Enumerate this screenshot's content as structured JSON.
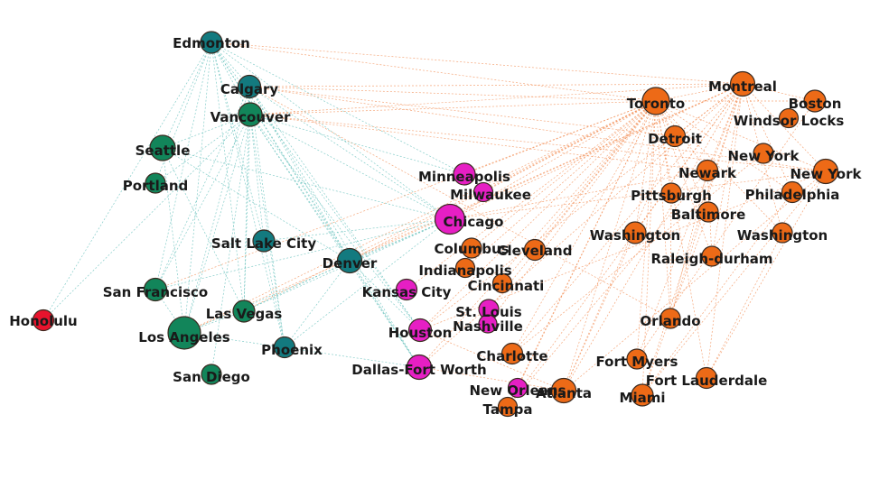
{
  "colors": {
    "canada_west": "#137a7f",
    "west_us": "#12855a",
    "central": "#e61fc4",
    "east": "#ed6a17",
    "hawaii": "#e8132d",
    "edge_teal": "#5dbdb8",
    "edge_orange": "#f28a4f"
  },
  "nodes": [
    {
      "id": "edmonton",
      "label": "Edmonton",
      "group": "canada_west",
      "weight": 1
    },
    {
      "id": "calgary",
      "label": "Calgary",
      "group": "canada_west",
      "weight": 1.1
    },
    {
      "id": "vancouver",
      "label": "Vancouver",
      "group": "west_us",
      "weight": 1.2
    },
    {
      "id": "seattle",
      "label": "Seattle",
      "group": "west_us",
      "weight": 1.4
    },
    {
      "id": "portland",
      "label": "Portland",
      "group": "west_us",
      "weight": 0.8
    },
    {
      "id": "saltlake",
      "label": "Salt Lake City",
      "group": "canada_west",
      "weight": 1
    },
    {
      "id": "denver",
      "label": "Denver",
      "group": "canada_west",
      "weight": 1.3
    },
    {
      "id": "sanfrancisco",
      "label": "San Francisco",
      "group": "west_us",
      "weight": 1.1
    },
    {
      "id": "lasvegas",
      "label": "Las Vegas",
      "group": "west_us",
      "weight": 1
    },
    {
      "id": "losangeles",
      "label": "Los Angeles",
      "group": "west_us",
      "weight": 2.2
    },
    {
      "id": "phoenix",
      "label": "Phoenix",
      "group": "canada_west",
      "weight": 0.9
    },
    {
      "id": "sandiego",
      "label": "San Diego",
      "group": "west_us",
      "weight": 0.8
    },
    {
      "id": "honolulu",
      "label": "Honolulu",
      "group": "hawaii",
      "weight": 0.9
    },
    {
      "id": "minneapolis",
      "label": "Minneapolis",
      "group": "central",
      "weight": 1
    },
    {
      "id": "milwaukee",
      "label": "Milwaukee",
      "group": "central",
      "weight": 0.7
    },
    {
      "id": "chicago",
      "label": "Chicago",
      "group": "central",
      "weight": 1.9
    },
    {
      "id": "kansascity",
      "label": "Kansas City",
      "group": "central",
      "weight": 0.9
    },
    {
      "id": "houston",
      "label": "Houston",
      "group": "central",
      "weight": 1.1
    },
    {
      "id": "dallas",
      "label": "Dallas-Fort Worth",
      "group": "central",
      "weight": 1.3
    },
    {
      "id": "stlouis",
      "label": "St. Louis",
      "group": "central",
      "weight": 0.8
    },
    {
      "id": "nashville",
      "label": "Nashville",
      "group": "central",
      "weight": 0.6
    },
    {
      "id": "neworleans",
      "label": "New Orleans",
      "group": "central",
      "weight": 0.7
    },
    {
      "id": "columbus",
      "label": "Columbus",
      "group": "east",
      "weight": 0.8
    },
    {
      "id": "cleveland",
      "label": "Cleveland",
      "group": "east",
      "weight": 0.9
    },
    {
      "id": "indianapolis",
      "label": "Indianapolis",
      "group": "east",
      "weight": 0.7
    },
    {
      "id": "cincinnati",
      "label": "Cincinnati",
      "group": "east",
      "weight": 0.7
    },
    {
      "id": "charlotte",
      "label": "Charlotte",
      "group": "east",
      "weight": 0.9
    },
    {
      "id": "atlanta",
      "label": "Atlanta",
      "group": "east",
      "weight": 1.3
    },
    {
      "id": "tampa",
      "label": "Tampa",
      "group": "east",
      "weight": 0.7
    },
    {
      "id": "toronto",
      "label": "Toronto",
      "group": "east",
      "weight": 1.6
    },
    {
      "id": "montreal",
      "label": "Montreal",
      "group": "east",
      "weight": 1.3
    },
    {
      "id": "boston",
      "label": "Boston",
      "group": "east",
      "weight": 1
    },
    {
      "id": "windsorlocks",
      "label": "Windsor Locks",
      "group": "east",
      "weight": 0.7
    },
    {
      "id": "detroit",
      "label": "Detroit",
      "group": "east",
      "weight": 0.9
    },
    {
      "id": "newyork1",
      "label": "New York",
      "group": "east",
      "weight": 0.8
    },
    {
      "id": "newark",
      "label": "Newark",
      "group": "east",
      "weight": 0.9
    },
    {
      "id": "newyork2",
      "label": "New York",
      "group": "east",
      "weight": 1.3
    },
    {
      "id": "pittsburgh",
      "label": "Pittsburgh",
      "group": "east",
      "weight": 0.8
    },
    {
      "id": "philadelphia",
      "label": "Philadelphia",
      "group": "east",
      "weight": 0.9
    },
    {
      "id": "baltimore",
      "label": "Baltimore",
      "group": "east",
      "weight": 0.8
    },
    {
      "id": "washington1",
      "label": "Washington",
      "group": "east",
      "weight": 1
    },
    {
      "id": "washington2",
      "label": "Washington",
      "group": "east",
      "weight": 0.8
    },
    {
      "id": "raleigh",
      "label": "Raleigh-durham",
      "group": "east",
      "weight": 0.8
    },
    {
      "id": "orlando",
      "label": "Orlando",
      "group": "east",
      "weight": 0.8
    },
    {
      "id": "fortmyers",
      "label": "Fort Myers",
      "group": "east",
      "weight": 0.8
    },
    {
      "id": "fortlauderdale",
      "label": "Fort Lauderdale",
      "group": "east",
      "weight": 0.9
    },
    {
      "id": "miami",
      "label": "Miami",
      "group": "east",
      "weight": 1
    }
  ],
  "edges": [
    [
      "edmonton",
      "calgary"
    ],
    [
      "edmonton",
      "vancouver"
    ],
    [
      "edmonton",
      "seattle"
    ],
    [
      "edmonton",
      "portland"
    ],
    [
      "edmonton",
      "saltlake"
    ],
    [
      "edmonton",
      "denver"
    ],
    [
      "edmonton",
      "lasvegas"
    ],
    [
      "edmonton",
      "losangeles"
    ],
    [
      "edmonton",
      "phoenix"
    ],
    [
      "edmonton",
      "honolulu"
    ],
    [
      "edmonton",
      "chicago"
    ],
    [
      "edmonton",
      "minneapolis"
    ],
    [
      "edmonton",
      "toronto"
    ],
    [
      "edmonton",
      "montreal"
    ],
    [
      "edmonton",
      "houston"
    ],
    [
      "edmonton",
      "dallas"
    ],
    [
      "edmonton",
      "sanfrancisco"
    ],
    [
      "calgary",
      "vancouver"
    ],
    [
      "calgary",
      "denver"
    ],
    [
      "calgary",
      "chicago"
    ],
    [
      "calgary",
      "toronto"
    ],
    [
      "calgary",
      "montreal"
    ],
    [
      "calgary",
      "dallas"
    ],
    [
      "calgary",
      "houston"
    ],
    [
      "calgary",
      "phoenix"
    ],
    [
      "calgary",
      "lasvegas"
    ],
    [
      "calgary",
      "losangeles"
    ],
    [
      "calgary",
      "sanfrancisco"
    ],
    [
      "calgary",
      "newyork2"
    ],
    [
      "calgary",
      "orlando"
    ],
    [
      "calgary",
      "detroit"
    ],
    [
      "vancouver",
      "seattle"
    ],
    [
      "vancouver",
      "portland"
    ],
    [
      "vancouver",
      "saltlake"
    ],
    [
      "vancouver",
      "denver"
    ],
    [
      "vancouver",
      "sanfrancisco"
    ],
    [
      "vancouver",
      "lasvegas"
    ],
    [
      "vancouver",
      "losangeles"
    ],
    [
      "vancouver",
      "phoenix"
    ],
    [
      "vancouver",
      "sandiego"
    ],
    [
      "vancouver",
      "chicago"
    ],
    [
      "vancouver",
      "toronto"
    ],
    [
      "vancouver",
      "montreal"
    ],
    [
      "vancouver",
      "dallas"
    ],
    [
      "vancouver",
      "houston"
    ],
    [
      "vancouver",
      "newyork2"
    ],
    [
      "vancouver",
      "newark"
    ],
    [
      "vancouver",
      "honolulu"
    ],
    [
      "vancouver",
      "minneapolis"
    ],
    [
      "toronto",
      "chicago"
    ],
    [
      "toronto",
      "losangeles"
    ],
    [
      "toronto",
      "lasvegas"
    ],
    [
      "toronto",
      "sanfrancisco"
    ],
    [
      "toronto",
      "denver"
    ],
    [
      "toronto",
      "dallas"
    ],
    [
      "toronto",
      "houston"
    ],
    [
      "toronto",
      "atlanta"
    ],
    [
      "toronto",
      "miami"
    ],
    [
      "toronto",
      "orlando"
    ],
    [
      "toronto",
      "fortlauderdale"
    ],
    [
      "toronto",
      "tampa"
    ],
    [
      "toronto",
      "neworleans"
    ],
    [
      "toronto",
      "charlotte"
    ],
    [
      "toronto",
      "newyork2"
    ],
    [
      "toronto",
      "boston"
    ],
    [
      "toronto",
      "philadelphia"
    ],
    [
      "toronto",
      "washington1"
    ],
    [
      "toronto",
      "washington2"
    ],
    [
      "toronto",
      "pittsburgh"
    ],
    [
      "toronto",
      "detroit"
    ],
    [
      "toronto",
      "cleveland"
    ],
    [
      "toronto",
      "columbus"
    ],
    [
      "toronto",
      "cincinnati"
    ],
    [
      "toronto",
      "indianapolis"
    ],
    [
      "toronto",
      "milwaukee"
    ],
    [
      "toronto",
      "minneapolis"
    ],
    [
      "toronto",
      "nashville"
    ],
    [
      "toronto",
      "stlouis"
    ],
    [
      "toronto",
      "kansascity"
    ],
    [
      "toronto",
      "montreal"
    ],
    [
      "toronto",
      "fortmyers"
    ],
    [
      "toronto",
      "raleigh"
    ],
    [
      "toronto",
      "baltimore"
    ],
    [
      "toronto",
      "newark"
    ],
    [
      "montreal",
      "chicago"
    ],
    [
      "montreal",
      "losangeles"
    ],
    [
      "montreal",
      "dallas"
    ],
    [
      "montreal",
      "houston"
    ],
    [
      "montreal",
      "atlanta"
    ],
    [
      "montreal",
      "miami"
    ],
    [
      "montreal",
      "orlando"
    ],
    [
      "montreal",
      "fortlauderdale"
    ],
    [
      "montreal",
      "newyork2"
    ],
    [
      "montreal",
      "boston"
    ],
    [
      "montreal",
      "philadelphia"
    ],
    [
      "montreal",
      "washington1"
    ],
    [
      "montreal",
      "washington2"
    ],
    [
      "montreal",
      "detroit"
    ],
    [
      "montreal",
      "tampa"
    ],
    [
      "montreal",
      "fortmyers"
    ],
    [
      "montreal",
      "denver"
    ],
    [
      "montreal",
      "newark"
    ],
    [
      "montreal",
      "charlotte"
    ],
    [
      "montreal",
      "raleigh"
    ],
    [
      "chicago",
      "newyork2"
    ],
    [
      "chicago",
      "newark"
    ],
    [
      "chicago",
      "losangeles"
    ],
    [
      "chicago",
      "lasvegas"
    ],
    [
      "chicago",
      "phoenix"
    ],
    [
      "chicago",
      "sanfrancisco"
    ],
    [
      "chicago",
      "denver"
    ],
    [
      "chicago",
      "saltlake"
    ],
    [
      "chicago",
      "seattle"
    ],
    [
      "denver",
      "dallas"
    ],
    [
      "denver",
      "houston"
    ],
    [
      "denver",
      "lasvegas"
    ],
    [
      "denver",
      "phoenix"
    ],
    [
      "denver",
      "seattle"
    ],
    [
      "dallas",
      "atlanta"
    ],
    [
      "dallas",
      "losangeles"
    ],
    [
      "houston",
      "newyork2"
    ],
    [
      "houston",
      "atlanta"
    ],
    [
      "atlanta",
      "newyork2"
    ],
    [
      "atlanta",
      "washington1"
    ],
    [
      "miami",
      "newyork2"
    ],
    [
      "orlando",
      "newark"
    ],
    [
      "fortlauderdale",
      "newyork2"
    ],
    [
      "tampa",
      "newark"
    ],
    [
      "atlanta",
      "detroit"
    ],
    [
      "charlotte",
      "newyork1"
    ],
    [
      "raleigh",
      "newark"
    ],
    [
      "fortmyers",
      "boston"
    ],
    [
      "miami",
      "philadelphia"
    ],
    [
      "fortlauderdale",
      "washington2"
    ],
    [
      "orlando",
      "pittsburgh"
    ],
    [
      "miami",
      "baltimore"
    ],
    [
      "sanfrancisco",
      "losangeles"
    ],
    [
      "seattle",
      "lasvegas"
    ],
    [
      "seattle",
      "losangeles"
    ],
    [
      "lasvegas",
      "losangeles"
    ],
    [
      "saltlake",
      "phoenix"
    ]
  ]
}
